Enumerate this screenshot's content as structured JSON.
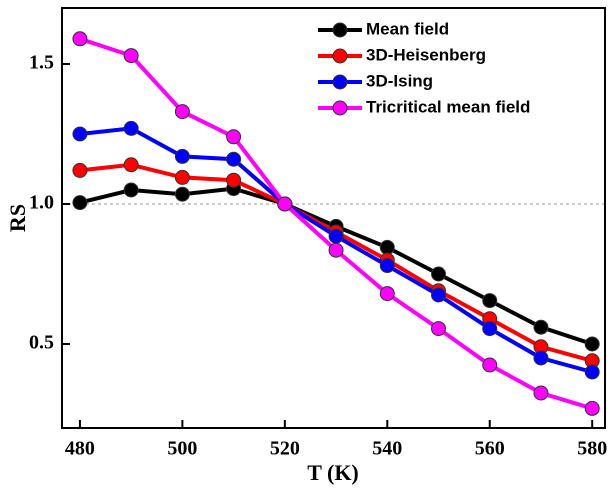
{
  "chart_data": {
    "type": "line",
    "x_label": "T (K)",
    "y_label": "RS",
    "x": [
      480,
      490,
      500,
      510,
      520,
      530,
      540,
      550,
      560,
      570,
      580
    ],
    "series": [
      {
        "name": "Mean field",
        "color": "#000000",
        "values": [
          1.005,
          1.05,
          1.035,
          1.055,
          1.0,
          0.92,
          0.845,
          0.75,
          0.655,
          0.56,
          0.5
        ]
      },
      {
        "name": "3D-Heisenberg",
        "color": "#ff0000",
        "values": [
          1.12,
          1.14,
          1.095,
          1.085,
          1.0,
          0.9,
          0.8,
          0.69,
          0.59,
          0.49,
          0.44
        ]
      },
      {
        "name": "3D-Ising",
        "color": "#0000ff",
        "values": [
          1.25,
          1.27,
          1.17,
          1.16,
          1.0,
          0.885,
          0.78,
          0.675,
          0.555,
          0.45,
          0.4
        ]
      },
      {
        "name": "Tricritical mean field",
        "color": "#ff00ff",
        "values": [
          1.59,
          1.53,
          1.33,
          1.24,
          1.0,
          0.835,
          0.68,
          0.555,
          0.425,
          0.325,
          0.27
        ]
      }
    ],
    "xlim": [
      476.5,
      582.5
    ],
    "ylim": [
      0.2,
      1.7
    ],
    "xticks": [
      480,
      500,
      520,
      540,
      560,
      580
    ],
    "yticks": [
      0.5,
      {
        "value": 1,
        "label": "1.0"
      },
      1.5
    ],
    "reference_line": 1,
    "legend": "top-right"
  }
}
